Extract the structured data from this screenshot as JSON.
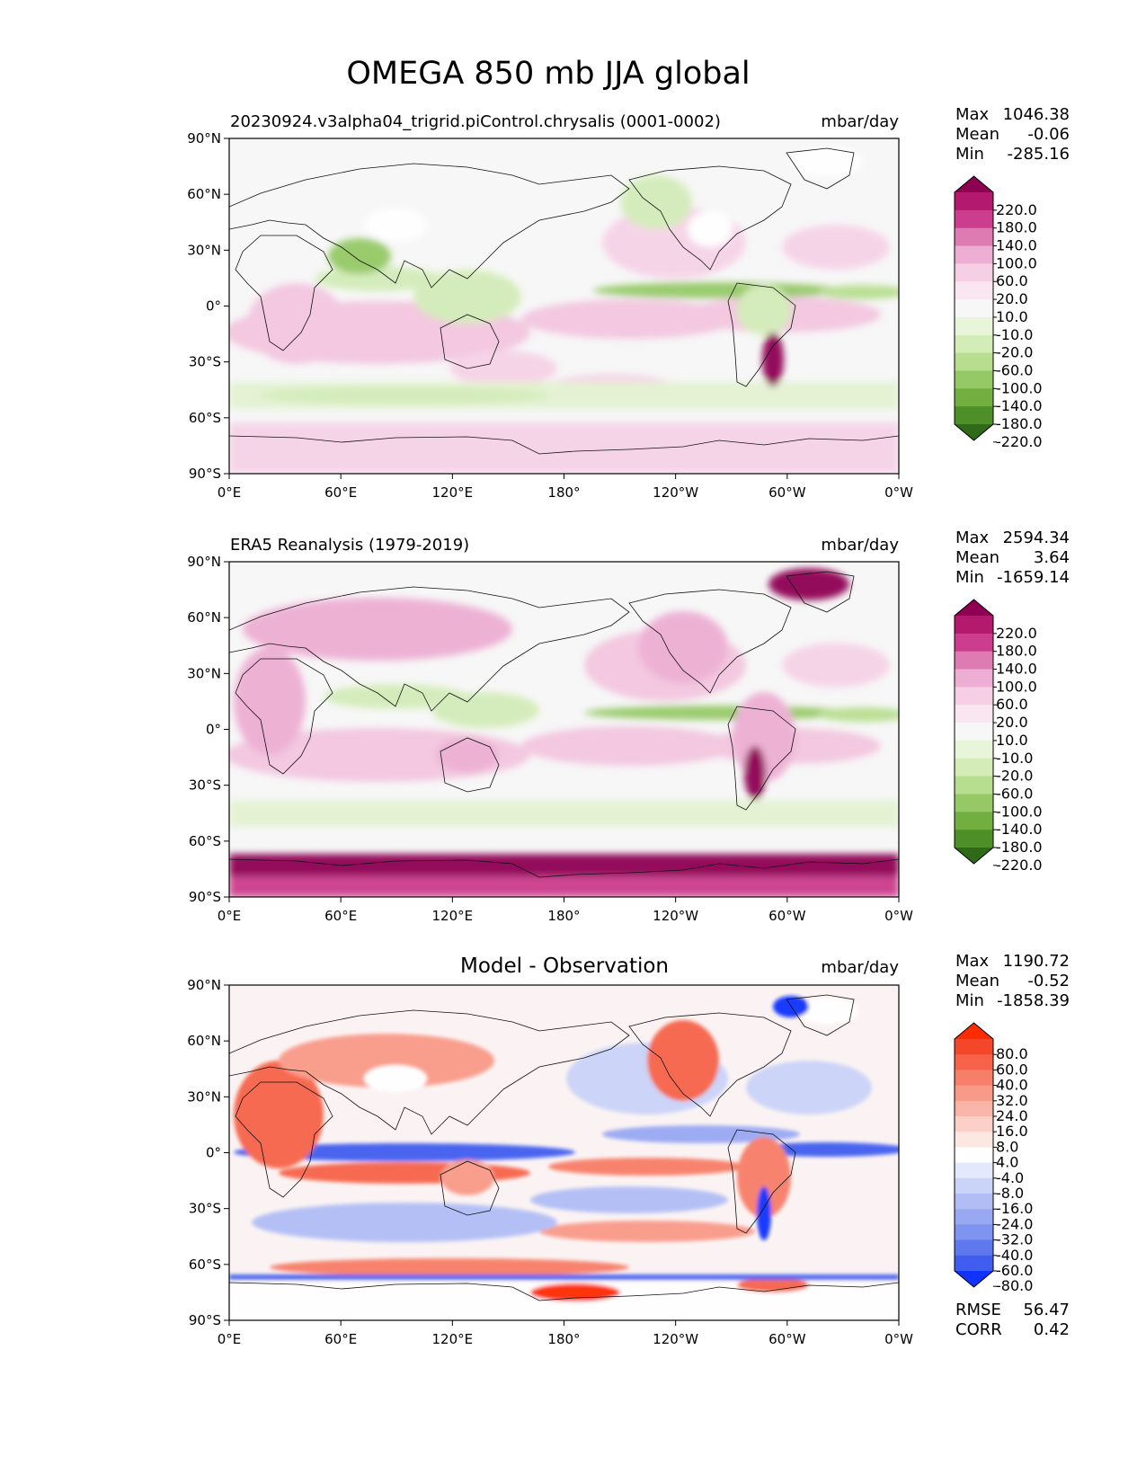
{
  "figure": {
    "title": "OMEGA 850 mb JJA global"
  },
  "chart_data": [
    {
      "type": "heatmap",
      "title_left": "20230924.v3alpha04_trigrid.piControl.chrysalis (0001-0002)",
      "title_center": "",
      "units": "mbar/day",
      "stats": [
        {
          "label": "Max",
          "value": "1046.38"
        },
        {
          "label": "Mean",
          "value": "-0.06"
        },
        {
          "label": "Min",
          "value": "-285.16"
        }
      ],
      "colorbar": {
        "levels": [
          "220.0",
          "180.0",
          "140.0",
          "100.0",
          "60.0",
          "20.0",
          "10.0",
          "-10.0",
          "-20.0",
          "-60.0",
          "-100.0",
          "-140.0",
          "-180.0",
          "-220.0"
        ],
        "colors": [
          "#8e0152",
          "#b3196d",
          "#cc3d8d",
          "#df7bb3",
          "#edaed3",
          "#f6cfe5",
          "#fae6f1",
          "#f7f7f7",
          "#e8f5d8",
          "#d3ecb8",
          "#b6de8e",
          "#95c966",
          "#72ae40",
          "#4e8f27",
          "#2e6a17"
        ]
      },
      "xticks": [
        "0°E",
        "60°E",
        "120°E",
        "180°",
        "120°W",
        "60°W",
        "0°W"
      ],
      "yticks": [
        "90°N",
        "60°N",
        "30°N",
        "0°",
        "30°S",
        "60°S",
        "90°S"
      ],
      "xlim": [
        0,
        360
      ],
      "ylim": [
        -90,
        90
      ]
    },
    {
      "type": "heatmap",
      "title_left": "ERA5 Reanalysis (1979-2019)",
      "title_center": "",
      "units": "mbar/day",
      "stats": [
        {
          "label": "Max",
          "value": "2594.34"
        },
        {
          "label": "Mean",
          "value": "3.64"
        },
        {
          "label": "Min",
          "value": "-1659.14"
        }
      ],
      "colorbar": {
        "levels": [
          "220.0",
          "180.0",
          "140.0",
          "100.0",
          "60.0",
          "20.0",
          "10.0",
          "-10.0",
          "-20.0",
          "-60.0",
          "-100.0",
          "-140.0",
          "-180.0",
          "-220.0"
        ],
        "colors": [
          "#8e0152",
          "#b3196d",
          "#cc3d8d",
          "#df7bb3",
          "#edaed3",
          "#f6cfe5",
          "#fae6f1",
          "#f7f7f7",
          "#e8f5d8",
          "#d3ecb8",
          "#b6de8e",
          "#95c966",
          "#72ae40",
          "#4e8f27",
          "#2e6a17"
        ]
      },
      "xticks": [
        "0°E",
        "60°E",
        "120°E",
        "180°",
        "120°W",
        "60°W",
        "0°W"
      ],
      "yticks": [
        "90°N",
        "60°N",
        "30°N",
        "0°",
        "30°S",
        "60°S",
        "90°S"
      ],
      "xlim": [
        0,
        360
      ],
      "ylim": [
        -90,
        90
      ]
    },
    {
      "type": "heatmap",
      "title_left": "",
      "title_center": "Model - Observation",
      "units": "mbar/day",
      "stats": [
        {
          "label": "Max",
          "value": "1190.72"
        },
        {
          "label": "Mean",
          "value": "-0.52"
        },
        {
          "label": "Min",
          "value": "-1858.39"
        }
      ],
      "colorbar": {
        "levels": [
          "80.0",
          "60.0",
          "40.0",
          "32.0",
          "24.0",
          "16.0",
          "8.0",
          "4.0",
          "-4.0",
          "-8.0",
          "-16.0",
          "-24.0",
          "-32.0",
          "-40.0",
          "-60.0",
          "-80.0"
        ],
        "colors": [
          "#ff2b00",
          "#f4472a",
          "#f6634a",
          "#f77e68",
          "#f99a88",
          "#fbb5a8",
          "#fcd0c6",
          "#fde7e1",
          "#ffffff",
          "#e3e8fb",
          "#cad3f8",
          "#b1bef6",
          "#98a8f3",
          "#7f93f0",
          "#5f78ee",
          "#3f5def",
          "#1133ff"
        ]
      },
      "footer_stats": [
        {
          "label": "RMSE",
          "value": "56.47"
        },
        {
          "label": "CORR",
          "value": "0.42"
        }
      ],
      "xticks": [
        "0°E",
        "60°E",
        "120°E",
        "180°",
        "120°W",
        "60°W",
        "0°W"
      ],
      "yticks": [
        "90°N",
        "60°N",
        "30°N",
        "0°",
        "30°S",
        "60°S",
        "90°S"
      ],
      "xlim": [
        0,
        360
      ],
      "ylim": [
        -90,
        90
      ]
    }
  ]
}
